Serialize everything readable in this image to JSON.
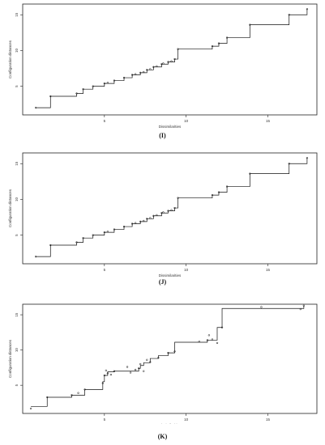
{
  "chart_data": [
    {
      "type": "line",
      "panel_label": "(I)",
      "xlabel": "Dissimilarities",
      "ylabel": "Configuration distances",
      "xlim": [
        0,
        18
      ],
      "ylim": [
        1,
        16.5
      ],
      "xticks": [
        5,
        10,
        15
      ],
      "yticks": [
        5,
        10,
        15
      ],
      "step": {
        "x": [
          0.8,
          1.7,
          3.3,
          3.7,
          4.3,
          5.0,
          5.6,
          6.2,
          6.7,
          7.2,
          7.6,
          8.0,
          8.5,
          8.9,
          9.3,
          9.5,
          11.6,
          12.0,
          12.5,
          13.9,
          16.3,
          17.4
        ],
        "y": [
          2.0,
          3.6,
          4.0,
          4.6,
          5.0,
          5.4,
          5.8,
          6.2,
          6.6,
          6.9,
          7.3,
          7.7,
          8.1,
          8.4,
          8.8,
          10.2,
          10.6,
          11.0,
          11.8,
          13.6,
          15.0,
          15.8
        ]
      },
      "points": {
        "x": [
          0.8,
          1.7,
          3.3,
          3.7,
          4.3,
          5.0,
          5.2,
          5.6,
          6.2,
          6.7,
          6.9,
          7.2,
          7.4,
          7.6,
          7.8,
          8.0,
          8.2,
          8.5,
          8.6,
          8.9,
          9.1,
          9.3,
          9.5,
          11.6,
          12.0,
          12.5,
          13.9,
          16.3,
          17.4
        ],
        "y": [
          2.0,
          3.6,
          4.0,
          4.6,
          5.0,
          5.4,
          5.5,
          5.8,
          6.2,
          6.6,
          6.7,
          6.9,
          7.0,
          7.3,
          7.4,
          7.7,
          7.8,
          8.1,
          8.2,
          8.4,
          8.5,
          8.8,
          10.2,
          10.6,
          11.0,
          11.8,
          13.6,
          15.0,
          15.8
        ]
      }
    },
    {
      "type": "line",
      "panel_label": "(J)",
      "xlabel": "Dissimilarities",
      "ylabel": "Configuration distances",
      "xlim": [
        0,
        18
      ],
      "ylim": [
        1,
        16.5
      ],
      "xticks": [
        5,
        10,
        15
      ],
      "yticks": [
        5,
        10,
        15
      ],
      "step": {
        "x": [
          0.8,
          1.7,
          3.3,
          3.7,
          4.3,
          5.0,
          5.6,
          6.2,
          6.7,
          7.2,
          7.6,
          8.0,
          8.5,
          8.9,
          9.3,
          9.5,
          11.6,
          12.0,
          12.5,
          13.9,
          16.3,
          17.4
        ],
        "y": [
          2.0,
          3.6,
          4.0,
          4.6,
          5.0,
          5.4,
          5.8,
          6.2,
          6.6,
          6.9,
          7.3,
          7.7,
          8.1,
          8.4,
          8.8,
          10.2,
          10.6,
          11.0,
          11.8,
          13.6,
          15.0,
          15.8
        ]
      },
      "points": {
        "x": [
          0.8,
          1.7,
          3.3,
          3.7,
          4.3,
          5.0,
          5.2,
          5.6,
          6.2,
          6.7,
          6.9,
          7.2,
          7.4,
          7.6,
          7.8,
          8.0,
          8.2,
          8.5,
          8.6,
          8.9,
          9.1,
          9.3,
          9.5,
          11.6,
          12.0,
          12.5,
          13.9,
          16.3,
          17.4
        ],
        "y": [
          2.0,
          3.6,
          4.0,
          4.6,
          5.0,
          5.4,
          5.5,
          5.8,
          6.2,
          6.6,
          6.7,
          6.9,
          7.0,
          7.3,
          7.4,
          7.7,
          7.8,
          8.1,
          8.2,
          8.4,
          8.5,
          8.8,
          10.2,
          10.6,
          11.0,
          11.8,
          13.6,
          15.0,
          15.8
        ]
      }
    },
    {
      "type": "line",
      "panel_label": "(K)",
      "xlabel": "Dissimilarities",
      "ylabel": "Configuration distances",
      "xlim": [
        0,
        18
      ],
      "ylim": [
        1,
        16.5
      ],
      "xticks": [
        5,
        10,
        15
      ],
      "yticks": [
        5,
        10,
        15
      ],
      "step": {
        "x": [
          0.5,
          1.5,
          3.0,
          3.8,
          4.9,
          5.0,
          5.2,
          5.6,
          7.1,
          7.2,
          7.4,
          7.8,
          8.3,
          8.9,
          9.3,
          11.3,
          11.9,
          12.2,
          17.2
        ],
        "y": [
          2.0,
          3.3,
          3.6,
          4.4,
          5.5,
          6.4,
          6.9,
          7.0,
          7.4,
          7.8,
          8.2,
          8.8,
          9.2,
          9.6,
          11.1,
          11.4,
          13.2,
          15.9,
          16.3
        ]
      },
      "points": {
        "x": [
          0.5,
          1.5,
          3.0,
          3.4,
          3.8,
          4.9,
          5.0,
          5.1,
          5.2,
          5.4,
          5.6,
          6.4,
          6.6,
          6.9,
          7.1,
          7.2,
          7.4,
          7.6,
          7.8,
          8.3,
          8.9,
          9.3,
          10.8,
          11.3,
          11.4,
          11.6,
          11.9,
          12.2,
          14.6,
          17.0,
          17.2
        ],
        "y": [
          1.7,
          3.3,
          3.6,
          3.9,
          4.4,
          5.3,
          6.4,
          7.1,
          6.7,
          6.5,
          7.0,
          7.6,
          6.8,
          7.2,
          7.4,
          8.0,
          7.0,
          8.6,
          8.3,
          8.9,
          9.6,
          9.8,
          11.2,
          11.4,
          12.1,
          11.5,
          11.0,
          13.2,
          16.1,
          15.8,
          16.3
        ]
      }
    }
  ]
}
